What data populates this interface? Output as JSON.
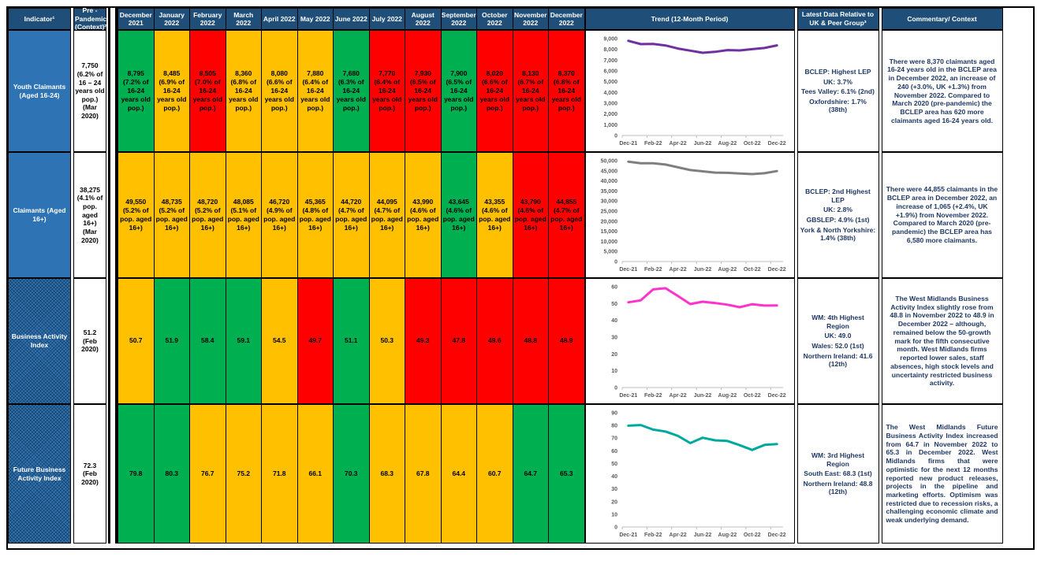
{
  "header": {
    "indicator": "Indicator¹",
    "pre_pandemic": "Pre - Pandemic (Context)²",
    "months": [
      "December 2021",
      "January 2022",
      "February 2022",
      "March 2022",
      "April 2022",
      "May 2022",
      "June 2022",
      "July 2022",
      "August 2022",
      "September 2022",
      "October 2022",
      "November 2022",
      "December 2022"
    ],
    "trend": "Trend (12-Month Period)",
    "latest": "Latest Data Relative to UK & Peer Group³",
    "commentary": "Commentary/ Context"
  },
  "colors": {
    "green": "#00B050",
    "amber": "#FFC000",
    "red": "#FF0000",
    "header_blue": "#1F4E79",
    "indicator_blue": "#2E74B5"
  },
  "rows": [
    {
      "indicator": "Youth Claimants (Aged 16-24)",
      "pre": {
        "value": "7,750",
        "note": "(6.2% of 16 – 24 years old pop.)",
        "date": "(Mar 2020)"
      },
      "cells": [
        {
          "value": "8,795",
          "note": "(7.2% of 16-24 years old pop.)",
          "status": "green"
        },
        {
          "value": "8,485",
          "note": "(6.9% of 16-24 years old pop.)",
          "status": "amber"
        },
        {
          "value": "8,505",
          "note": "(7.0% of 16-24 years old pop.)",
          "status": "red"
        },
        {
          "value": "8,360",
          "note": "(6.8% of 16-24 years old pop.)",
          "status": "amber"
        },
        {
          "value": "8,080",
          "note": "(6.6% of 16-24 years old pop.)",
          "status": "amber"
        },
        {
          "value": "7,880",
          "note": "(6.4% of 16-24 years old pop.)",
          "status": "amber"
        },
        {
          "value": "7,680",
          "note": "(6.3% of 16-24 years old pop.)",
          "status": "green"
        },
        {
          "value": "7,770",
          "note": "(6.4% of 16-24 years old pop.)",
          "status": "red"
        },
        {
          "value": "7,930",
          "note": "(6.5% of 16-24 years old pop.)",
          "status": "red"
        },
        {
          "value": "7,900",
          "note": "(6.5% of 16-24 years old pop.)",
          "status": "green"
        },
        {
          "value": "8,020",
          "note": "(6.6% of 16-24 years old pop.)",
          "status": "red"
        },
        {
          "value": "8,130",
          "note": "(6.7% of 16-24 years old pop.)",
          "status": "red"
        },
        {
          "value": "8,370",
          "note": "(6.8% of 16-24 years old pop.)",
          "status": "red"
        }
      ],
      "latest_lines": [
        "BCLEP: Highest LEP",
        "UK: 3.7%",
        "Tees Valley: 6.1% (2nd)",
        "Oxfordshire: 1.7% (38th)"
      ],
      "commentary": "There were 8,370 claimants aged 16-24 years old in the BCLEP area in December 2022, an increase of 240 (+3.0%, UK +1.3%) from November 2022. Compared to March 2020 (pre-pandemic) the BCLEP area has 620 more claimants aged 16-24 years old."
    },
    {
      "indicator": "Claimants (Aged 16+)",
      "pre": {
        "value": "38,275",
        "note": "(4.1% of pop. aged 16+)",
        "date": "(Mar 2020)"
      },
      "cells": [
        {
          "value": "49,550",
          "note": "(5.2% of pop. aged 16+)",
          "status": "amber"
        },
        {
          "value": "48,735",
          "note": "(5.2% of pop. aged 16+)",
          "status": "amber"
        },
        {
          "value": "48,720",
          "note": "(5.2% of pop. aged 16+)",
          "status": "amber"
        },
        {
          "value": "48,085",
          "note": "(5.1% of pop. aged 16+)",
          "status": "amber"
        },
        {
          "value": "46,720",
          "note": "(4.9% of pop. aged 16+)",
          "status": "amber"
        },
        {
          "value": "45,365",
          "note": "(4.8% of pop. aged 16+)",
          "status": "amber"
        },
        {
          "value": "44,720",
          "note": "(4.7% of pop. aged 16+)",
          "status": "amber"
        },
        {
          "value": "44,095",
          "note": "(4.7% of pop. aged 16+)",
          "status": "amber"
        },
        {
          "value": "43,990",
          "note": "(4.6% of pop. aged 16+)",
          "status": "amber"
        },
        {
          "value": "43,645",
          "note": "(4.6% of pop. aged 16+)",
          "status": "green"
        },
        {
          "value": "43,355",
          "note": "(4.6% of pop. aged 16+)",
          "status": "amber"
        },
        {
          "value": "43,790",
          "note": "(4.6% of pop. aged 16+)",
          "status": "red"
        },
        {
          "value": "44,855",
          "note": "(4.7% of pop. aged 16+)",
          "status": "red"
        }
      ],
      "latest_lines": [
        "BCLEP: 2nd Highest LEP",
        "UK: 2.8%",
        "GBSLEP: 4.9% (1st)",
        "York & North Yorkshire: 1.4% (38th)"
      ],
      "commentary": "There were 44,855 claimants in the BCLEP area in December 2022, an increase of 1,065 (+2.4%, UK +1.9%) from November 2022. Compared to March 2020 (pre-pandemic) the BCLEP area has 6,580 more claimants."
    },
    {
      "indicator": "Business Activity Index",
      "pre": {
        "value": "51.2",
        "note": "",
        "date": "(Feb 2020)"
      },
      "cells": [
        {
          "value": "50.7",
          "note": "",
          "status": "amber"
        },
        {
          "value": "51.9",
          "note": "",
          "status": "green"
        },
        {
          "value": "58.4",
          "note": "",
          "status": "green"
        },
        {
          "value": "59.1",
          "note": "",
          "status": "green"
        },
        {
          "value": "54.5",
          "note": "",
          "status": "amber"
        },
        {
          "value": "49.7",
          "note": "",
          "status": "red"
        },
        {
          "value": "51.1",
          "note": "",
          "status": "green"
        },
        {
          "value": "50.3",
          "note": "",
          "status": "amber"
        },
        {
          "value": "49.3",
          "note": "",
          "status": "red"
        },
        {
          "value": "47.8",
          "note": "",
          "status": "red"
        },
        {
          "value": "49.6",
          "note": "",
          "status": "red"
        },
        {
          "value": "48.8",
          "note": "",
          "status": "red"
        },
        {
          "value": "48.9",
          "note": "",
          "status": "red"
        }
      ],
      "latest_lines": [
        "WM: 4th Highest Region",
        "UK: 49.0",
        "Wales: 52.0 (1st)",
        "Northern Ireland: 41.6 (12th)"
      ],
      "commentary": "The West Midlands Business Activity Index slightly rose from 48.8 in November 2022 to 48.9 in December 2022 – although, remained below the 50-growth mark for the fifth consecutive month. West Midlands firms reported lower sales, staff absences, high stock levels and uncertainty restricted business activity."
    },
    {
      "indicator": "Future Business Activity Index",
      "pre": {
        "value": "72.3",
        "note": "",
        "date": "(Feb 2020)"
      },
      "cells": [
        {
          "value": "79.8",
          "note": "",
          "status": "green"
        },
        {
          "value": "80.3",
          "note": "",
          "status": "green"
        },
        {
          "value": "76.7",
          "note": "",
          "status": "amber"
        },
        {
          "value": "75.2",
          "note": "",
          "status": "amber"
        },
        {
          "value": "71.8",
          "note": "",
          "status": "amber"
        },
        {
          "value": "66.1",
          "note": "",
          "status": "amber"
        },
        {
          "value": "70.3",
          "note": "",
          "status": "green"
        },
        {
          "value": "68.3",
          "note": "",
          "status": "amber"
        },
        {
          "value": "67.8",
          "note": "",
          "status": "amber"
        },
        {
          "value": "64.4",
          "note": "",
          "status": "amber"
        },
        {
          "value": "60.7",
          "note": "",
          "status": "amber"
        },
        {
          "value": "64.7",
          "note": "",
          "status": "green"
        },
        {
          "value": "65.3",
          "note": "",
          "status": "green"
        }
      ],
      "latest_lines": [
        "WM: 3rd Highest Region",
        "South East: 68.3 (1st)",
        "Northern Ireland: 48.8 (12th)"
      ],
      "commentary": "The West Midlands Future Business Activity Index increased from 64.7 in November 2022 to 65.3 in December 2022. West Midlands firms that were optimistic for the next 12 months reported new product releases, projects in the pipeline and marketing efforts. Optimism was restricted due to recession risks, a challenging economic climate and weak underlying demand."
    }
  ],
  "chart_data": [
    {
      "type": "line",
      "title": "Youth Claimants (Aged 16-24) trend",
      "x": [
        "Dec-21",
        "Jan-22",
        "Feb-22",
        "Mar-22",
        "Apr-22",
        "May-22",
        "Jun-22",
        "Jul-22",
        "Aug-22",
        "Sep-22",
        "Oct-22",
        "Nov-22",
        "Dec-22"
      ],
      "values": [
        8795,
        8485,
        8505,
        8360,
        8080,
        7880,
        7680,
        7770,
        7930,
        7900,
        8020,
        8130,
        8370
      ],
      "ylim": [
        0,
        9000
      ],
      "ystep": 1000,
      "x_tick_labels": [
        "Dec-21",
        "Feb-22",
        "Apr-22",
        "Jun-22",
        "Aug-22",
        "Oct-22",
        "Dec-22"
      ],
      "color": "#7030A0",
      "grid": false,
      "legend": "none"
    },
    {
      "type": "line",
      "title": "Claimants (Aged 16+) trend",
      "x": [
        "Dec-21",
        "Jan-22",
        "Feb-22",
        "Mar-22",
        "Apr-22",
        "May-22",
        "Jun-22",
        "Jul-22",
        "Aug-22",
        "Sep-22",
        "Oct-22",
        "Nov-22",
        "Dec-22"
      ],
      "values": [
        49550,
        48735,
        48720,
        48085,
        46720,
        45365,
        44720,
        44095,
        43990,
        43645,
        43355,
        43790,
        44855
      ],
      "ylim": [
        0,
        50000
      ],
      "ystep": 5000,
      "x_tick_labels": [
        "Dec-21",
        "Feb-22",
        "Apr-22",
        "Jun-22",
        "Aug-22",
        "Oct-22",
        "Dec-22"
      ],
      "color": "#7F7F7F",
      "grid": false,
      "legend": "none"
    },
    {
      "type": "line",
      "title": "Business Activity Index trend",
      "x": [
        "Dec-21",
        "Jan-22",
        "Feb-22",
        "Mar-22",
        "Apr-22",
        "May-22",
        "Jun-22",
        "Jul-22",
        "Aug-22",
        "Sep-22",
        "Oct-22",
        "Nov-22",
        "Dec-22"
      ],
      "values": [
        50.7,
        51.9,
        58.4,
        59.1,
        54.5,
        49.7,
        51.1,
        50.3,
        49.3,
        47.8,
        49.6,
        48.8,
        48.9
      ],
      "ylim": [
        0,
        60
      ],
      "ystep": 10,
      "x_tick_labels": [
        "Dec-21",
        "Feb-22",
        "Apr-22",
        "Jun-22",
        "Aug-22",
        "Oct-22",
        "Dec-22"
      ],
      "color": "#FF33CC",
      "grid": false,
      "legend": "none"
    },
    {
      "type": "line",
      "title": "Future Business Activity Index trend",
      "x": [
        "Dec-21",
        "Jan-22",
        "Feb-22",
        "Mar-22",
        "Apr-22",
        "May-22",
        "Jun-22",
        "Jul-22",
        "Aug-22",
        "Sep-22",
        "Oct-22",
        "Nov-22",
        "Dec-22"
      ],
      "values": [
        79.8,
        80.3,
        76.7,
        75.2,
        71.8,
        66.1,
        70.3,
        68.3,
        67.8,
        64.4,
        60.7,
        64.7,
        65.3
      ],
      "ylim": [
        0,
        90
      ],
      "ystep": 10,
      "x_tick_labels": [
        "Dec-21",
        "Feb-22",
        "Apr-22",
        "Jun-22",
        "Aug-22",
        "Oct-22",
        "Dec-22"
      ],
      "color": "#00A99D",
      "grid": false,
      "legend": "none"
    }
  ]
}
